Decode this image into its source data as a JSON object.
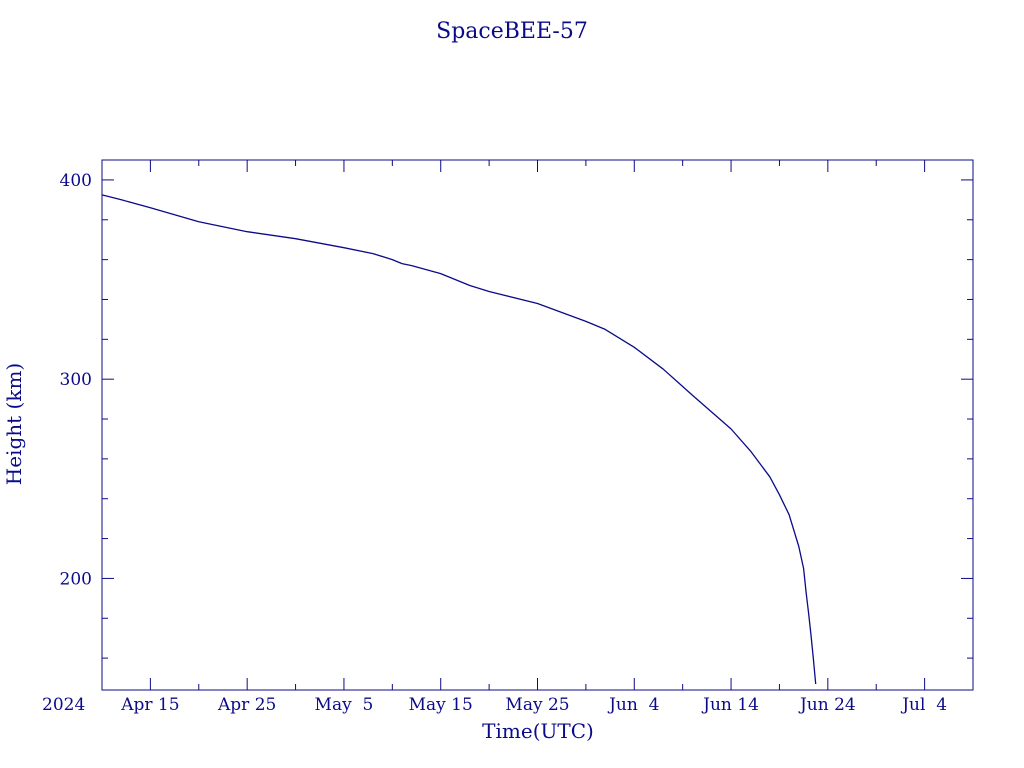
{
  "colors": {
    "ink": "#0b0b8a",
    "background": "#ffffff"
  },
  "chart_data": {
    "type": "line",
    "title": "SpaceBEE-57",
    "xlabel": "Time(UTC)",
    "ylabel": "Height (km)",
    "x_start_label": "2024",
    "xlim": [
      "2024-04-10",
      "2024-07-09"
    ],
    "ylim": [
      144,
      410
    ],
    "y_ticks": [
      400,
      300,
      200
    ],
    "y_minor_step": 20,
    "x_ticks": [
      {
        "date": "2024-04-15",
        "label": "Apr 15"
      },
      {
        "date": "2024-04-25",
        "label": "Apr 25"
      },
      {
        "date": "2024-05-05",
        "label": "May  5"
      },
      {
        "date": "2024-05-15",
        "label": "May 15"
      },
      {
        "date": "2024-05-25",
        "label": "May 25"
      },
      {
        "date": "2024-06-04",
        "label": "Jun  4"
      },
      {
        "date": "2024-06-14",
        "label": "Jun 14"
      },
      {
        "date": "2024-06-24",
        "label": "Jun 24"
      },
      {
        "date": "2024-07-04",
        "label": "Jul  4"
      }
    ],
    "x_minor_step_days": 5,
    "grid": false,
    "series": [
      {
        "color": "#0b0b8a",
        "x": [
          "2024-04-10",
          "2024-04-12",
          "2024-04-15",
          "2024-04-20",
          "2024-04-25",
          "2024-04-30",
          "2024-05-05",
          "2024-05-08",
          "2024-05-10",
          "2024-05-11",
          "2024-05-12",
          "2024-05-15",
          "2024-05-18",
          "2024-05-20",
          "2024-05-25",
          "2024-05-30",
          "2024-06-01",
          "2024-06-04",
          "2024-06-07",
          "2024-06-10",
          "2024-06-14",
          "2024-06-16",
          "2024-06-18",
          "2024-06-19",
          "2024-06-20",
          "2024-06-21",
          "2024-06-21T12:00",
          "2024-06-21T18:00",
          "2024-06-22",
          "2024-06-22T06:00",
          "2024-06-22T12:00",
          "2024-06-22T18:00"
        ],
        "y": [
          392.5,
          390,
          386,
          379,
          374,
          370.5,
          366,
          363,
          360,
          358,
          357,
          353,
          347,
          344,
          338,
          329,
          325,
          316,
          305,
          292,
          275,
          264,
          251,
          242,
          232,
          216,
          205,
          193,
          183,
          172,
          160,
          147
        ]
      }
    ]
  }
}
